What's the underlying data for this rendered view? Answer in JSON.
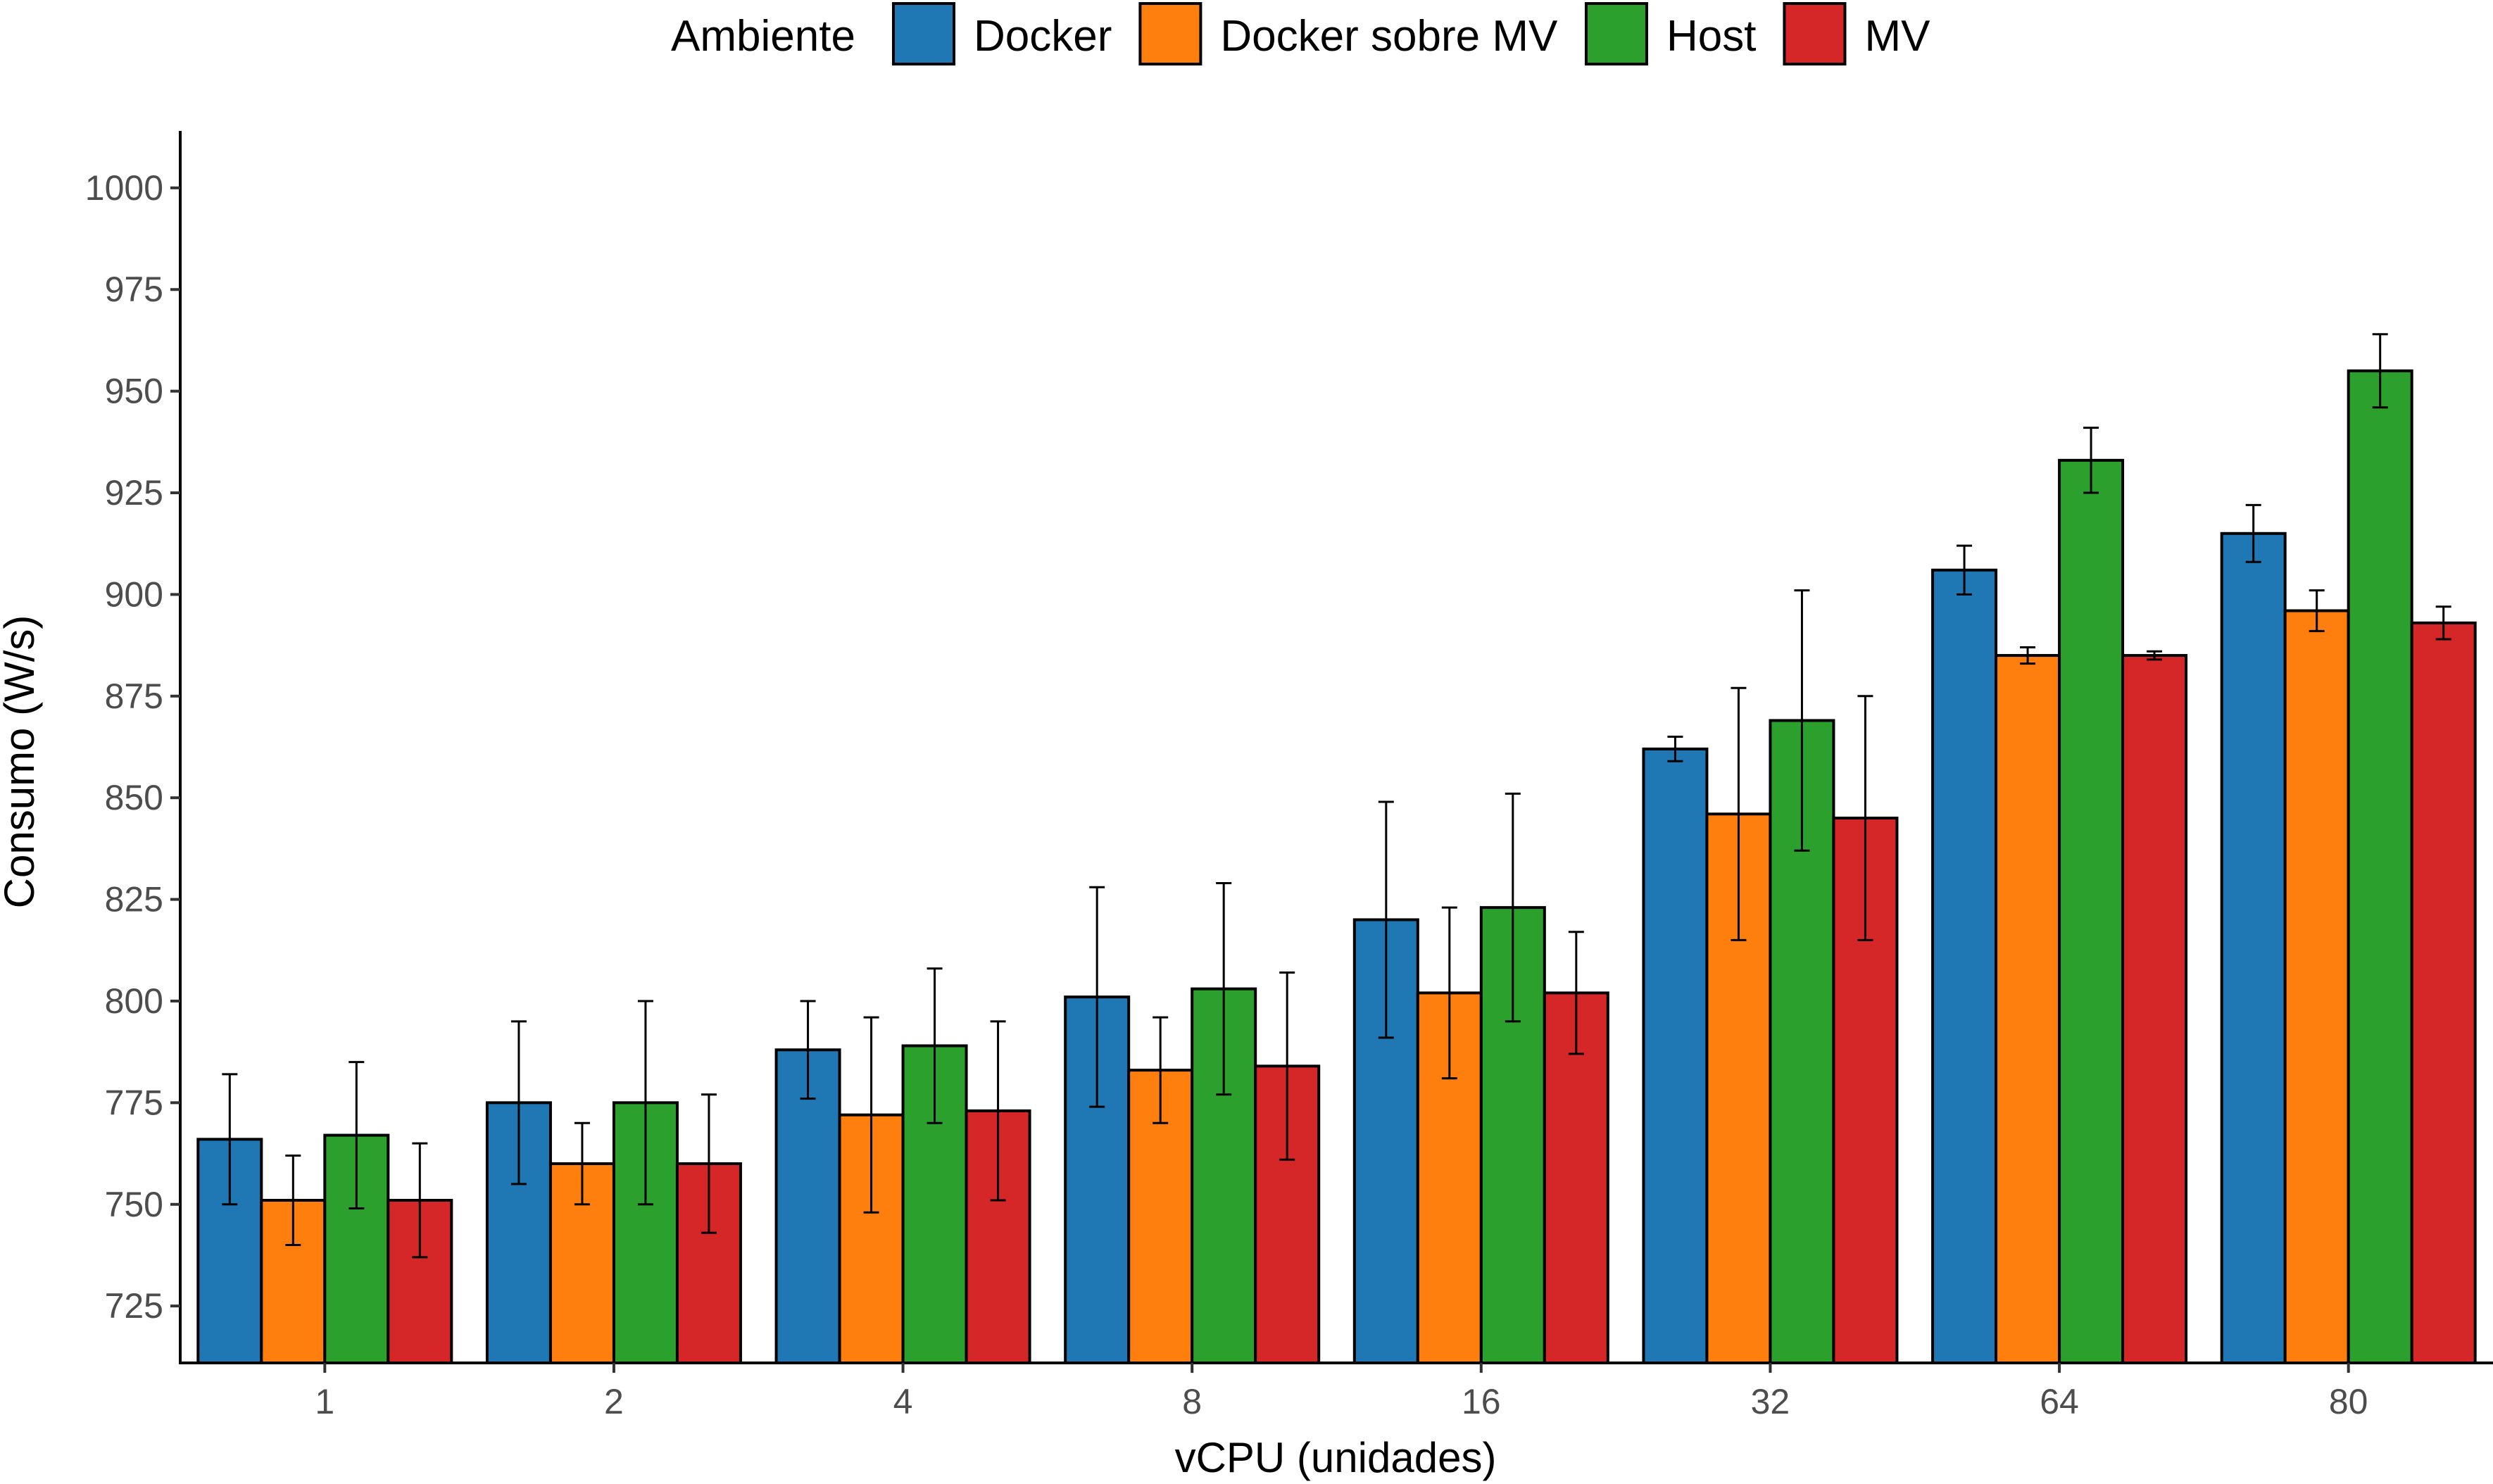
{
  "chart_data": {
    "type": "bar",
    "title": "",
    "xlabel": "vCPU (unidades)",
    "ylabel": "Consumo (W/s)",
    "ylim": [
      711,
      1014
    ],
    "yticks": [
      725,
      750,
      775,
      800,
      825,
      850,
      875,
      900,
      925,
      950,
      975,
      1000
    ],
    "categories": [
      "1",
      "2",
      "4",
      "8",
      "16",
      "32",
      "64",
      "80"
    ],
    "legend": {
      "title": "Ambiente",
      "position": "top"
    },
    "grid": false,
    "error_bars": true,
    "series": [
      {
        "name": "Docker",
        "color": "#1f77b4",
        "values": [
          766,
          775,
          788,
          801,
          820,
          862,
          906,
          915
        ],
        "err_low": [
          750,
          755,
          776,
          774,
          791,
          859,
          900,
          908
        ],
        "err_high": [
          782,
          795,
          800,
          828,
          849,
          865,
          912,
          922
        ]
      },
      {
        "name": "Docker sobre MV",
        "color": "#ff7f0e",
        "values": [
          751,
          760,
          772,
          783,
          802,
          846,
          885,
          896
        ],
        "err_low": [
          740,
          750,
          748,
          770,
          781,
          815,
          883,
          891
        ],
        "err_high": [
          762,
          770,
          796,
          796,
          823,
          877,
          887,
          901
        ]
      },
      {
        "name": "Host",
        "color": "#2ca02c",
        "values": [
          767,
          775,
          789,
          803,
          823,
          869,
          933,
          955
        ],
        "err_low": [
          749,
          750,
          770,
          777,
          795,
          837,
          925,
          946
        ],
        "err_high": [
          785,
          800,
          808,
          829,
          851,
          901,
          941,
          964
        ]
      },
      {
        "name": "MV",
        "color": "#d62728",
        "values": [
          751,
          760,
          773,
          784,
          802,
          845,
          885,
          893
        ],
        "err_low": [
          737,
          743,
          751,
          761,
          787,
          815,
          884,
          889
        ],
        "err_high": [
          765,
          777,
          795,
          807,
          817,
          875,
          886,
          897
        ]
      }
    ]
  }
}
